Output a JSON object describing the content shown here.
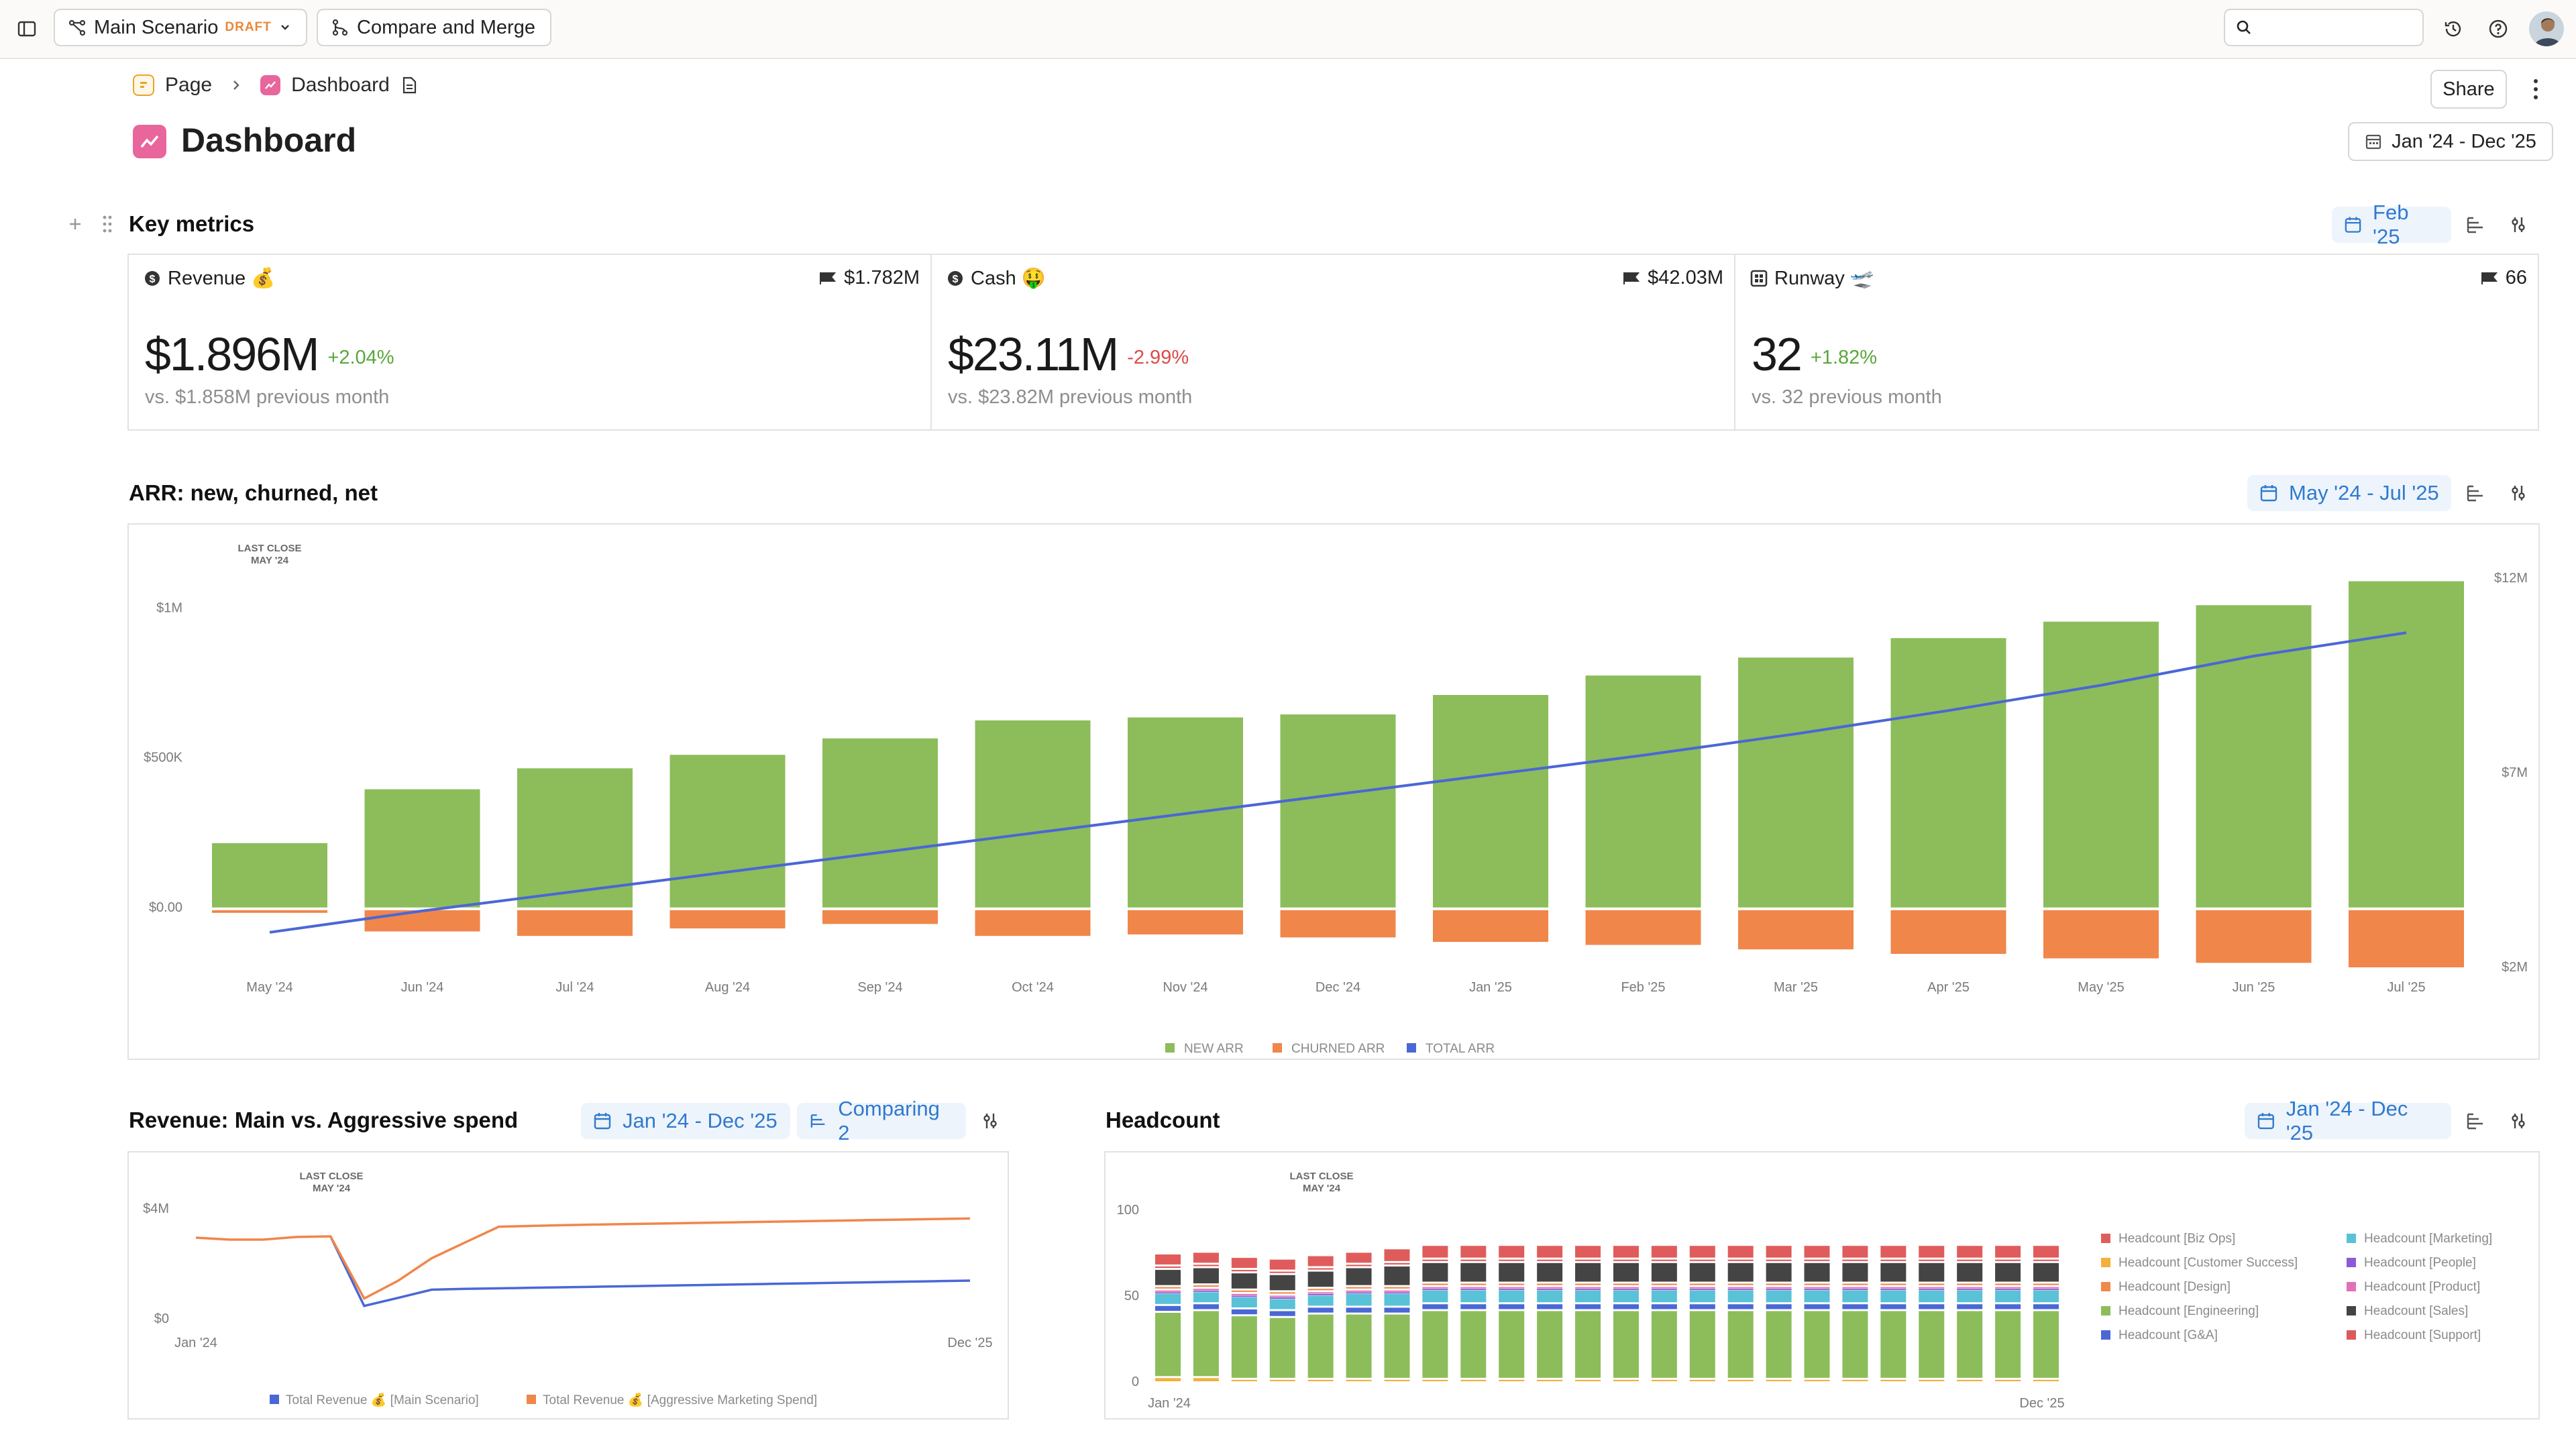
{
  "topbar": {
    "scenario": "Main Scenario",
    "scenario_badge": "DRAFT",
    "compare": "Compare and Merge",
    "search_placeholder": ""
  },
  "breadcrumb": {
    "page": "Page",
    "dashboard": "Dashboard"
  },
  "page": {
    "title": "Dashboard",
    "share": "Share",
    "range": "Jan '24 - Dec '25"
  },
  "key_metrics": {
    "title": "Key metrics",
    "date": "Feb '25",
    "cards": [
      {
        "label": "Revenue 💰",
        "target": "$1.782M",
        "value": "$1.896M",
        "delta": "+2.04%",
        "sub": "vs. $1.858M previous month"
      },
      {
        "label": "Cash 🤑",
        "target": "$42.03M",
        "value": "$23.11M",
        "delta": "-2.99%",
        "sub": "vs. $23.82M previous month"
      },
      {
        "label": "Runway 🛫",
        "target": "66",
        "value": "32",
        "delta": "+1.82%",
        "sub": "vs. 32 previous month"
      }
    ]
  },
  "arr": {
    "title": "ARR: new, churned, net",
    "date": "May '24 - Jul '25",
    "last_close": [
      "LAST CLOSE",
      "MAY '24"
    ]
  },
  "revenue": {
    "title": "Revenue: Main vs. Aggressive spend",
    "date": "Jan '24 - Dec '25",
    "comparing": "Comparing 2",
    "last_close": [
      "LAST CLOSE",
      "MAY '24"
    ]
  },
  "headcount": {
    "title": "Headcount",
    "date": "Jan '24 - Dec '25",
    "last_close": [
      "LAST CLOSE",
      "MAY '24"
    ]
  },
  "colors": {
    "green": "#8cbd5a",
    "orange": "#f0864a",
    "blue": "#4a67d6",
    "accent": "#2f7ad0",
    "pink": "#e8669c"
  },
  "chart_data": [
    {
      "type": "bar",
      "title": "ARR: new, churned, net",
      "categories": [
        "May '24",
        "Jun '24",
        "Jul '24",
        "Aug '24",
        "Sep '24",
        "Oct '24",
        "Nov '24",
        "Dec '24",
        "Jan '25",
        "Feb '25",
        "Mar '25",
        "Apr '25",
        "May '25",
        "Jun '25",
        "Jul '25"
      ],
      "y_left_ticks": [
        "$1M",
        "$500K",
        "$0.00"
      ],
      "y_right_ticks": [
        "$12M",
        "$7M",
        "$2M"
      ],
      "ylim_left": [
        -200000,
        1100000
      ],
      "ylim_right": [
        2000000,
        12000000
      ],
      "series": [
        {
          "name": "NEW ARR",
          "axis": "left",
          "values": [
            215000,
            395000,
            465000,
            510000,
            565000,
            625000,
            635000,
            645000,
            710000,
            775000,
            835000,
            900000,
            955000,
            1010000,
            1090000
          ]
        },
        {
          "name": "CHURNED ARR",
          "axis": "left",
          "values": [
            -15000,
            -80000,
            -95000,
            -70000,
            -55000,
            -95000,
            -90000,
            -100000,
            -115000,
            -125000,
            -140000,
            -155000,
            -170000,
            -185000,
            -200000
          ]
        },
        {
          "name": "TOTAL ARR",
          "axis": "right",
          "type": "line",
          "values": [
            2900000,
            3450000,
            3950000,
            4450000,
            4950000,
            5450000,
            5950000,
            6450000,
            6950000,
            7450000,
            8000000,
            8600000,
            9250000,
            10000000,
            10600000
          ]
        }
      ],
      "legend": "bottom"
    },
    {
      "type": "line",
      "title": "Revenue: Main vs. Aggressive spend",
      "x_ticks": [
        "Jan '24",
        "Dec '25"
      ],
      "y_ticks": [
        "$4M",
        "$0"
      ],
      "ylim": [
        0,
        4000000
      ],
      "series": [
        {
          "name": "Total Revenue 💰 [Main Scenario]",
          "values": [
            null,
            null,
            null,
            null,
            3000000,
            470000,
            760000,
            1060000,
            1090000,
            1110000,
            1130000,
            1150000,
            1170000,
            1190000,
            1210000,
            1230000,
            1250000,
            1270000,
            1290000,
            1310000,
            1330000,
            1350000,
            1370000,
            1390000
          ]
        },
        {
          "name": "Total Revenue 💰 [Aggressive Marketing Spend]",
          "values": [
            2950000,
            2880000,
            2880000,
            2980000,
            3000000,
            740000,
            1380000,
            2200000,
            2780000,
            3350000,
            3380000,
            3410000,
            3430000,
            3450000,
            3470000,
            3490000,
            3510000,
            3530000,
            3550000,
            3570000,
            3590000,
            3610000,
            3630000,
            3650000
          ]
        }
      ],
      "legend": "bottom"
    },
    {
      "type": "bar",
      "stacked": true,
      "title": "Headcount",
      "x_ticks": [
        "Jan '24",
        "Dec '25"
      ],
      "y_ticks": [
        "100",
        "50",
        "0"
      ],
      "ylim": [
        0,
        100
      ],
      "months": 24,
      "series": [
        {
          "name": "Headcount [Customer Success]",
          "color": "#f2b13a",
          "values": [
            3,
            3,
            2,
            2,
            2,
            2,
            2,
            2,
            2,
            2,
            2,
            2,
            2,
            2,
            2,
            2,
            2,
            2,
            2,
            2,
            2,
            2,
            2,
            2
          ]
        },
        {
          "name": "Headcount [Engineering]",
          "color": "#8cbd5a",
          "values": [
            38,
            39,
            37,
            36,
            38,
            38,
            38,
            40,
            40,
            40,
            40,
            40,
            40,
            40,
            40,
            40,
            40,
            40,
            40,
            40,
            40,
            40,
            40,
            40
          ]
        },
        {
          "name": "Headcount [G&A]",
          "color": "#4a67d6",
          "values": [
            4,
            4,
            4,
            4,
            4,
            4,
            4,
            4,
            4,
            4,
            4,
            4,
            4,
            4,
            4,
            4,
            4,
            4,
            4,
            4,
            4,
            4,
            4,
            4
          ]
        },
        {
          "name": "Headcount [Marketing]",
          "color": "#59c2d6",
          "values": [
            7,
            7,
            7,
            7,
            7,
            8,
            8,
            8,
            8,
            8,
            8,
            8,
            8,
            8,
            8,
            8,
            8,
            8,
            8,
            8,
            8,
            8,
            8,
            8
          ]
        },
        {
          "name": "Headcount [People]",
          "color": "#8b5cd6",
          "values": [
            1,
            1,
            1,
            1,
            1,
            1,
            1,
            1,
            1,
            1,
            1,
            1,
            1,
            1,
            1,
            1,
            1,
            1,
            1,
            1,
            1,
            1,
            1,
            1
          ]
        },
        {
          "name": "Headcount [Product]",
          "color": "#e26fb8",
          "values": [
            1,
            1,
            1,
            1,
            1,
            1,
            1,
            1,
            1,
            1,
            1,
            1,
            1,
            1,
            1,
            1,
            1,
            1,
            1,
            1,
            1,
            1,
            1,
            1
          ]
        },
        {
          "name": "Headcount [Design]",
          "color": "#f08a4a",
          "values": [
            2,
            2,
            2,
            2,
            2,
            2,
            2,
            2,
            2,
            2,
            2,
            2,
            2,
            2,
            2,
            2,
            2,
            2,
            2,
            2,
            2,
            2,
            2,
            2
          ]
        },
        {
          "name": "Headcount [Sales]",
          "color": "#444444",
          "values": [
            10,
            10,
            10,
            10,
            10,
            11,
            12,
            12,
            12,
            12,
            12,
            12,
            12,
            12,
            12,
            12,
            12,
            12,
            12,
            12,
            12,
            12,
            12,
            12
          ]
        },
        {
          "name": "Headcount [Support]",
          "color": "#de5a5a",
          "values": [
            2,
            2,
            2,
            2,
            2,
            2,
            2,
            2,
            2,
            2,
            2,
            2,
            2,
            2,
            2,
            2,
            2,
            2,
            2,
            2,
            2,
            2,
            2,
            2
          ]
        },
        {
          "name": "Headcount [Biz Ops]",
          "color": "#e05c5c",
          "values": [
            7,
            7,
            7,
            7,
            7,
            7,
            8,
            8,
            8,
            8,
            8,
            8,
            8,
            8,
            8,
            8,
            8,
            8,
            8,
            8,
            8,
            8,
            8,
            8
          ]
        }
      ],
      "legend_left": [
        "Headcount [Biz Ops]",
        "Headcount [Customer Success]",
        "Headcount [Design]",
        "Headcount [Engineering]",
        "Headcount [G&A]"
      ],
      "legend_right": [
        "Headcount [Marketing]",
        "Headcount [People]",
        "Headcount [Product]",
        "Headcount [Sales]",
        "Headcount [Support]"
      ],
      "legend": "right"
    }
  ]
}
